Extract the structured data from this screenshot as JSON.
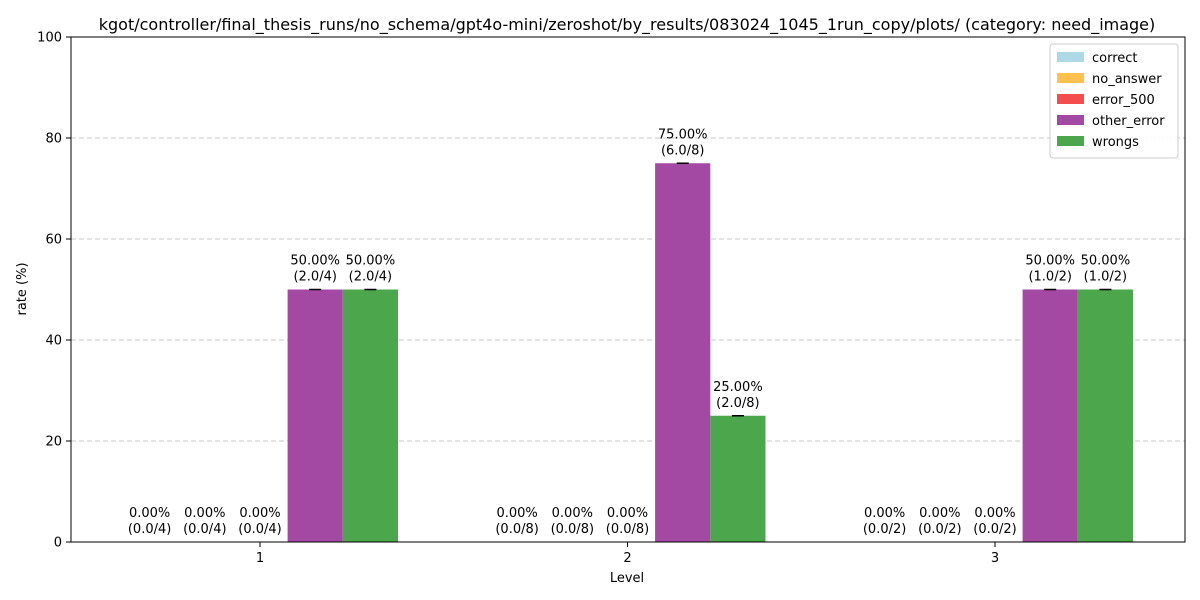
{
  "chart_data": {
    "type": "bar",
    "title": "kgot/controller/final_thesis_runs/no_schema/gpt4o-mini/zeroshot/by_results/083024_1045_1run_copy/plots/ (category: need_image)",
    "xlabel": "Level",
    "ylabel": "rate (%)",
    "ylim": [
      0,
      100
    ],
    "yticks": [
      "0",
      "20",
      "40",
      "60",
      "80",
      "100"
    ],
    "grid": "y-dashed",
    "legend_position": "top-right",
    "categories": [
      "1",
      "2",
      "3"
    ],
    "series": [
      {
        "name": "correct",
        "color": "#add8e6",
        "values": [
          0,
          0,
          0
        ],
        "labels": [
          "0.00%",
          "0.00%",
          "0.00%"
        ],
        "counts": [
          "(0.0/4)",
          "(0.0/8)",
          "(0.0/2)"
        ]
      },
      {
        "name": "no_answer",
        "color": "#ffc04d",
        "values": [
          0,
          0,
          0
        ],
        "labels": [
          "0.00%",
          "0.00%",
          "0.00%"
        ],
        "counts": [
          "(0.0/4)",
          "(0.0/8)",
          "(0.0/2)"
        ]
      },
      {
        "name": "error_500",
        "color": "#f44d4d",
        "values": [
          0,
          0,
          0
        ],
        "labels": [
          "0.00%",
          "0.00%",
          "0.00%"
        ],
        "counts": [
          "(0.0/4)",
          "(0.0/8)",
          "(0.0/2)"
        ]
      },
      {
        "name": "other_error",
        "color": "#a349a4",
        "values": [
          50,
          75,
          50
        ],
        "labels": [
          "50.00%",
          "75.00%",
          "50.00%"
        ],
        "counts": [
          "(2.0/4)",
          "(6.0/8)",
          "(1.0/2)"
        ]
      },
      {
        "name": "wrongs",
        "color": "#4ca64c",
        "values": [
          50,
          25,
          50
        ],
        "labels": [
          "50.00%",
          "25.00%",
          "50.00%"
        ],
        "counts": [
          "(2.0/4)",
          "(2.0/8)",
          "(1.0/2)"
        ]
      }
    ]
  }
}
